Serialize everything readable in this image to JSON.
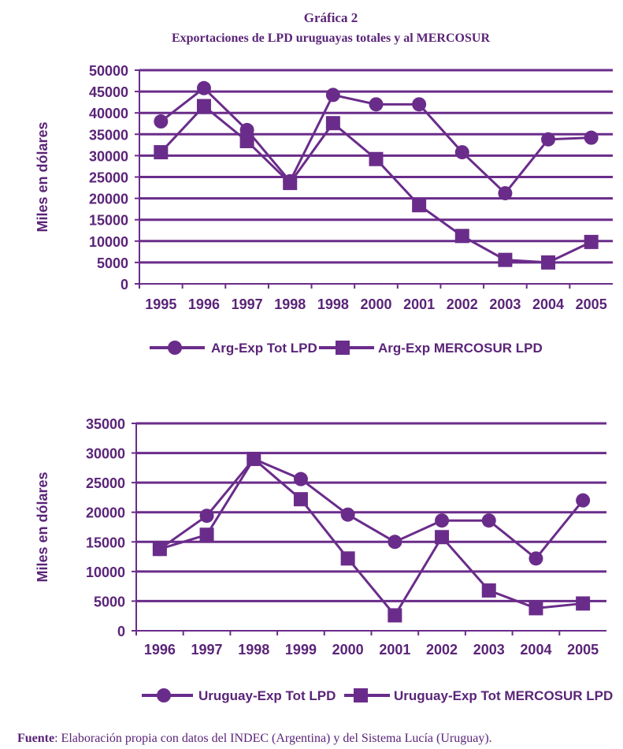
{
  "title": "Gráfica 2",
  "subtitle": "Exportaciones de LPD uruguayas totales y al MERCOSUR",
  "chart_data": [
    {
      "type": "line",
      "y_label": "Miles en dólares",
      "categories": [
        "1995",
        "1996",
        "1997",
        "1998",
        "1998",
        "2000",
        "2001",
        "2002",
        "2003",
        "2004",
        "2005"
      ],
      "series": [
        {
          "name": "Arg-Exp Tot LPD",
          "color": "#6a2c8a",
          "marker": "circle",
          "values": [
            38000,
            45800,
            36000,
            24000,
            44200,
            42000,
            42000,
            30800,
            21200,
            33800,
            34200
          ]
        },
        {
          "name": "Arg-Exp MERCOSUR LPD",
          "color": "#6a2c8a",
          "marker": "square",
          "values": [
            30800,
            41600,
            33400,
            23600,
            37600,
            29200,
            18400,
            11200,
            5600,
            5000,
            9800
          ]
        }
      ],
      "ylim": [
        0,
        50000
      ],
      "yticks": [
        0,
        5000,
        10000,
        15000,
        20000,
        25000,
        30000,
        35000,
        40000,
        45000,
        50000
      ],
      "grid": true
    },
    {
      "type": "line",
      "y_label": "Miles en dólares",
      "categories": [
        "1996",
        "1997",
        "1998",
        "1999",
        "2000",
        "2001",
        "2002",
        "2003",
        "2004",
        "2005"
      ],
      "series": [
        {
          "name": "Uruguay-Exp Tot LPD",
          "color": "#6a2c8a",
          "marker": "circle",
          "values": [
            13800,
            19400,
            29000,
            25600,
            19600,
            15000,
            18600,
            18600,
            12200,
            22000
          ]
        },
        {
          "name": "Uruguay-Exp Tot MERCOSUR LPD",
          "color": "#6a2c8a",
          "marker": "square",
          "values": [
            13800,
            16200,
            29000,
            22200,
            12200,
            2600,
            15800,
            6800,
            3800,
            4600
          ]
        }
      ],
      "ylim": [
        0,
        35000
      ],
      "yticks": [
        0,
        5000,
        10000,
        15000,
        20000,
        25000,
        30000,
        35000
      ],
      "grid": true
    }
  ],
  "source": {
    "label": "Fuente",
    "text": ": Elaboración propia con datos del INDEC (Argentina) y del Sistema Lucía (Uruguay)."
  }
}
